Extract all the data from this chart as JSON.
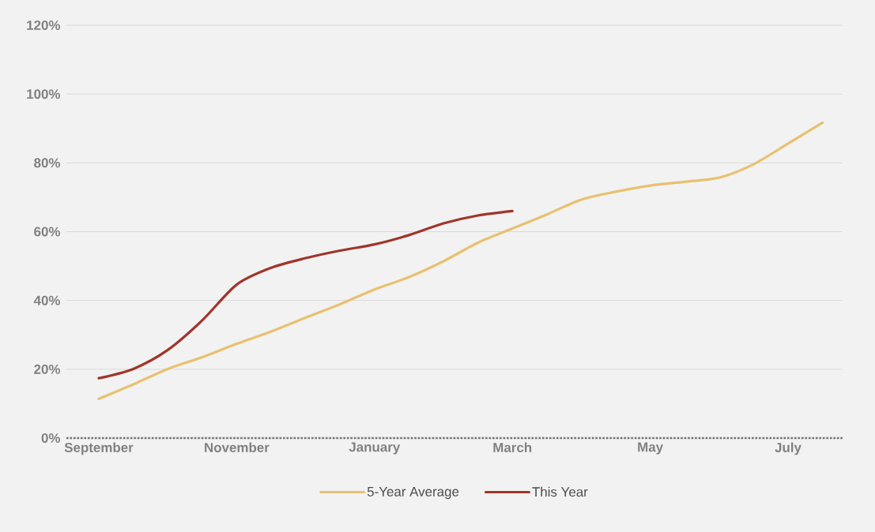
{
  "chart_data": {
    "type": "line",
    "categories": [
      "September",
      null,
      null,
      null,
      "November",
      null,
      null,
      null,
      "January",
      null,
      null,
      null,
      "March",
      null,
      null,
      null,
      "May",
      null,
      null,
      null,
      "July",
      null
    ],
    "series": [
      {
        "name": "5-Year Average",
        "color": "#e8c170",
        "values": [
          11.4,
          15.6,
          20.1,
          23.5,
          27.4,
          31,
          35,
          38.9,
          43.2,
          46.8,
          51.4,
          56.8,
          60.9,
          65,
          69.3,
          71.6,
          73.4,
          74.5,
          75.7,
          79.6,
          85.6,
          91.7
        ]
      },
      {
        "name": "This Year",
        "color": "#a0352b",
        "values": [
          17.4,
          20.1,
          25.6,
          34.2,
          44.6,
          49.5,
          52.3,
          54.5,
          56.3,
          59,
          62.4,
          64.7,
          66,
          null,
          null,
          null,
          null,
          null,
          null,
          null,
          null,
          null
        ]
      }
    ],
    "ylim": [
      0,
      120
    ],
    "yticks": [
      {
        "value": 0,
        "label": "0%"
      },
      {
        "value": 20,
        "label": "20%"
      },
      {
        "value": 40,
        "label": "40%"
      },
      {
        "value": 60,
        "label": "60%"
      },
      {
        "value": 80,
        "label": "80%"
      },
      {
        "value": 100,
        "label": "100%"
      },
      {
        "value": 120,
        "label": "120%"
      }
    ],
    "grid": "y",
    "legend": "bottom",
    "marker": "none",
    "line_style": "solid"
  }
}
